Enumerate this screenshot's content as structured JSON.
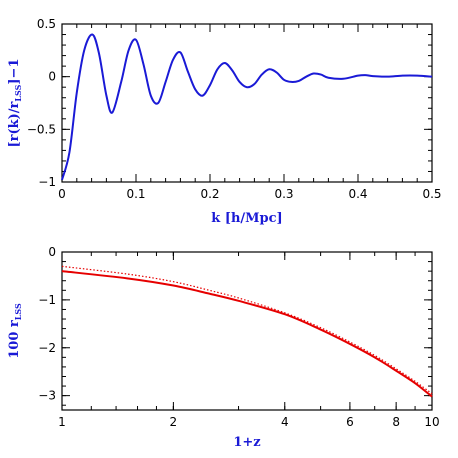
{
  "chart_data": [
    {
      "type": "line",
      "xlabel": "k [h/Mpc]",
      "ylabel": {
        "prefix": "[r(k)/r",
        "sub": "LSS",
        "suffix": "]−1"
      },
      "xlim": [
        0,
        0.5
      ],
      "ylim": [
        -1,
        0.5
      ],
      "x_ticks": [
        "0",
        "0.1",
        "0.2",
        "0.3",
        "0.4",
        "0.5"
      ],
      "y_ticks": [
        "−1",
        "−0.5",
        "0",
        "0.5"
      ],
      "grid": false,
      "series": [
        {
          "color": "#1a1ad6",
          "style": "solid",
          "x": [
            0.0,
            0.01,
            0.02,
            0.03,
            0.041,
            0.05,
            0.06,
            0.068,
            0.08,
            0.09,
            0.1,
            0.11,
            0.12,
            0.13,
            0.14,
            0.15,
            0.16,
            0.17,
            0.18,
            0.19,
            0.2,
            0.21,
            0.22,
            0.23,
            0.24,
            0.25,
            0.26,
            0.27,
            0.28,
            0.29,
            0.3,
            0.31,
            0.32,
            0.33,
            0.34,
            0.35,
            0.36,
            0.38,
            0.4,
            0.41,
            0.42,
            0.44,
            0.46,
            0.48,
            0.5
          ],
          "y": [
            -0.98,
            -0.72,
            -0.15,
            0.25,
            0.4,
            0.22,
            -0.18,
            -0.34,
            -0.05,
            0.25,
            0.35,
            0.12,
            -0.18,
            -0.25,
            -0.05,
            0.16,
            0.23,
            0.05,
            -0.12,
            -0.18,
            -0.08,
            0.07,
            0.13,
            0.06,
            -0.05,
            -0.1,
            -0.07,
            0.02,
            0.07,
            0.04,
            -0.03,
            -0.05,
            -0.04,
            0.0,
            0.03,
            0.02,
            -0.01,
            -0.02,
            0.01,
            0.015,
            0.005,
            0.0,
            0.01,
            0.01,
            0.0
          ]
        }
      ]
    },
    {
      "type": "line",
      "xlabel": "1+z",
      "ylabel": {
        "prefix": "100 r",
        "sub": "LSS",
        "suffix": ""
      },
      "xscale": "log",
      "xlim": [
        1,
        10
      ],
      "ylim": [
        -3.3,
        0
      ],
      "x_ticks": [
        {
          "value": 1,
          "label": "1"
        },
        {
          "value": 2,
          "label": "2"
        },
        {
          "value": 4,
          "label": "4"
        },
        {
          "value": 6,
          "label": "6"
        },
        {
          "value": 8,
          "label": "8"
        },
        {
          "value": 10,
          "label": "10"
        }
      ],
      "y_ticks": [
        "0",
        "−1",
        "−2",
        "−3"
      ],
      "grid": false,
      "series": [
        {
          "color": "#e60000",
          "style": "solid",
          "x": [
            1,
            1.5,
            2,
            2.5,
            3,
            4,
            5,
            6,
            7,
            8,
            9,
            10
          ],
          "y": [
            -0.4,
            -0.55,
            -0.7,
            -0.87,
            -1.02,
            -1.3,
            -1.62,
            -1.92,
            -2.2,
            -2.48,
            -2.74,
            -3.02
          ]
        },
        {
          "color": "#e60000",
          "style": "dotted",
          "x": [
            1,
            1.5,
            2,
            2.5,
            3,
            4,
            5,
            6,
            7,
            8,
            9,
            10
          ],
          "y": [
            -0.3,
            -0.46,
            -0.62,
            -0.8,
            -0.96,
            -1.27,
            -1.58,
            -1.88,
            -2.16,
            -2.44,
            -2.7,
            -2.96
          ]
        }
      ]
    }
  ]
}
